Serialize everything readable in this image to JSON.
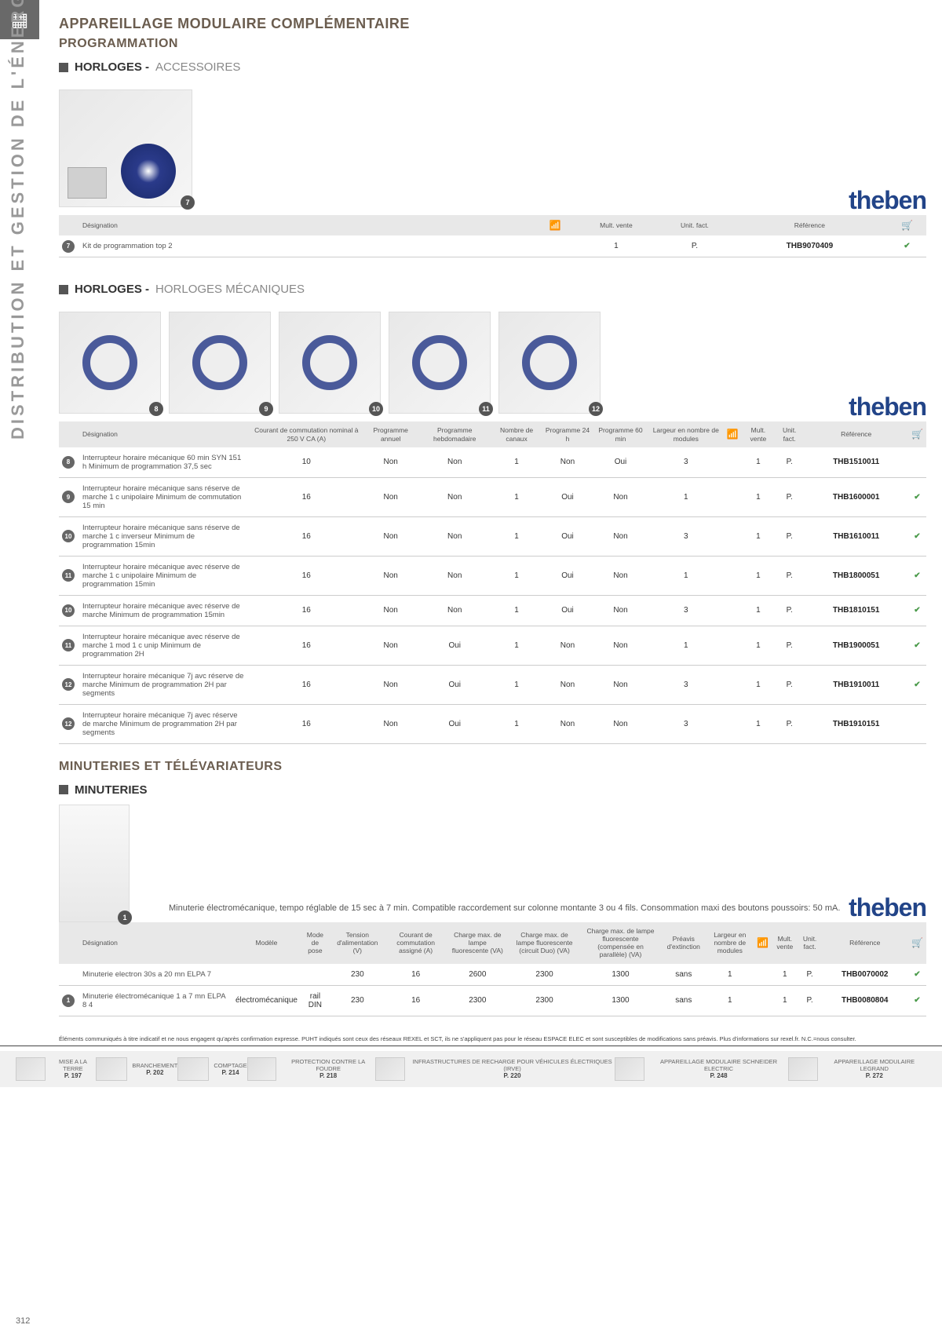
{
  "page_number": "312",
  "vertical_label": "DISTRIBUTION ET GESTION DE L'ÉNERGIE",
  "title_main": "APPAREILLAGE MODULAIRE COMPLÉMENTAIRE",
  "title_sub": "PROGRAMMATION",
  "brand": "theben",
  "section1": {
    "category": "HORLOGES -",
    "subcategory": "ACCESSOIRES",
    "headers": {
      "designation": "Désignation",
      "mult_vente": "Mult. vente",
      "unit_fact": "Unit. fact.",
      "reference": "Référence"
    },
    "rows": [
      {
        "badge": "7",
        "designation": "Kit de programmation top 2",
        "mult": "1",
        "unit": "P.",
        "ref": "THB9070409",
        "check": true
      }
    ]
  },
  "section2": {
    "category": "HORLOGES -",
    "subcategory": "HORLOGES MÉCANIQUES",
    "img_badges": [
      "8",
      "9",
      "10",
      "11",
      "12"
    ],
    "headers": {
      "designation": "Désignation",
      "courant": "Courant de commutation nominal à 250 V CA (A)",
      "prog_annuel": "Programme annuel",
      "prog_hebdo": "Programme hebdomadaire",
      "nb_canaux": "Nombre de canaux",
      "prog_24h": "Programme 24 h",
      "prog_60min": "Programme 60 min",
      "largeur": "Largeur en nombre de modules",
      "mult_vente": "Mult. vente",
      "unit_fact": "Unit. fact.",
      "reference": "Référence"
    },
    "rows": [
      {
        "badge": "8",
        "designation": "Interrupteur horaire mécanique 60 min SYN 151 h  Minimum de programmation 37,5 sec",
        "courant": "10",
        "annuel": "Non",
        "hebdo": "Non",
        "canaux": "1",
        "p24h": "Non",
        "p60": "Oui",
        "largeur": "3",
        "mult": "1",
        "unit": "P.",
        "ref": "THB1510011",
        "check": false
      },
      {
        "badge": "9",
        "designation": "Interrupteur horaire mécanique sans réserve de marche 1 c unipolaire Minimum de commutation 15 min",
        "courant": "16",
        "annuel": "Non",
        "hebdo": "Non",
        "canaux": "1",
        "p24h": "Oui",
        "p60": "Non",
        "largeur": "1",
        "mult": "1",
        "unit": "P.",
        "ref": "THB1600001",
        "check": true
      },
      {
        "badge": "10",
        "designation": "Interrupteur horaire mécanique sans réserve de marche 1 c  inverseur Minimum de programmation 15min",
        "courant": "16",
        "annuel": "Non",
        "hebdo": "Non",
        "canaux": "1",
        "p24h": "Oui",
        "p60": "Non",
        "largeur": "3",
        "mult": "1",
        "unit": "P.",
        "ref": "THB1610011",
        "check": true
      },
      {
        "badge": "11",
        "designation": "Interrupteur horaire mécanique  avec réserve de marche  1 c  unipolaire Minimum de programmation 15min",
        "courant": "16",
        "annuel": "Non",
        "hebdo": "Non",
        "canaux": "1",
        "p24h": "Oui",
        "p60": "Non",
        "largeur": "1",
        "mult": "1",
        "unit": "P.",
        "ref": "THB1800051",
        "check": true
      },
      {
        "badge": "10",
        "designation": "Interrupteur horaire mécanique avec réserve de marche Minimum de programmation 15min",
        "courant": "16",
        "annuel": "Non",
        "hebdo": "Non",
        "canaux": "1",
        "p24h": "Oui",
        "p60": "Non",
        "largeur": "3",
        "mult": "1",
        "unit": "P.",
        "ref": "THB1810151",
        "check": true
      },
      {
        "badge": "11",
        "designation": "Interrupteur horaire mécanique avec réserve de marche  1 mod 1 c unip Minimum de programmation 2H",
        "courant": "16",
        "annuel": "Non",
        "hebdo": "Oui",
        "canaux": "1",
        "p24h": "Non",
        "p60": "Non",
        "largeur": "1",
        "mult": "1",
        "unit": "P.",
        "ref": "THB1900051",
        "check": true
      },
      {
        "badge": "12",
        "designation": "Interrupteur horaire mécanique 7j avc réserve de marche Minimum de programmation 2H par segments",
        "courant": "16",
        "annuel": "Non",
        "hebdo": "Oui",
        "canaux": "1",
        "p24h": "Non",
        "p60": "Non",
        "largeur": "3",
        "mult": "1",
        "unit": "P.",
        "ref": "THB1910011",
        "check": true
      },
      {
        "badge": "12",
        "designation": "Interrupteur horaire mécanique 7j avec réserve de marche Minimum de programmation 2H par segments",
        "courant": "16",
        "annuel": "Non",
        "hebdo": "Oui",
        "canaux": "1",
        "p24h": "Non",
        "p60": "Non",
        "largeur": "3",
        "mult": "1",
        "unit": "P.",
        "ref": "THB1910151",
        "check": false
      }
    ]
  },
  "section3_title": "MINUTERIES ET TÉLÉVARIATEURS",
  "section3": {
    "category": "MINUTERIES",
    "description": "Minuterie électromécanique, tempo réglable de 15 sec à 7 min. Compatible raccordement sur colonne montante 3 ou 4 fils. Consommation maxi des boutons poussoirs: 50 mA.",
    "desc_badge": "1",
    "headers": {
      "designation": "Désignation",
      "modele": "Modèle",
      "mode_pose": "Mode de pose",
      "tension": "Tension d'alimentation (V)",
      "courant": "Courant de commutation assigné (A)",
      "charge_lampe": "Charge max. de lampe fluorescente (VA)",
      "charge_duo": "Charge max. de lampe fluorescente (circuit Duo) (VA)",
      "charge_comp": "Charge max. de lampe fluorescente (compensée en parallèle) (VA)",
      "preavis": "Préavis d'extinction",
      "largeur": "Largeur en nombre de modules",
      "mult_vente": "Mult. vente",
      "unit_fact": "Unit. fact.",
      "reference": "Référence"
    },
    "rows": [
      {
        "badge": "",
        "designation": "Minuterie electron 30s a 20 mn ELPA 7",
        "modele": "",
        "pose": "",
        "tension": "230",
        "courant": "16",
        "c1": "2600",
        "c2": "2300",
        "c3": "1300",
        "preavis": "sans",
        "largeur": "1",
        "mult": "1",
        "unit": "P.",
        "ref": "THB0070002",
        "check": true
      },
      {
        "badge": "1",
        "designation": "Minuterie électromécanique 1 a 7 mn ELPA 8 4",
        "modele": "électromécanique",
        "pose": "rail DIN",
        "tension": "230",
        "courant": "16",
        "c1": "2300",
        "c2": "2300",
        "c3": "1300",
        "preavis": "sans",
        "largeur": "1",
        "mult": "1",
        "unit": "P.",
        "ref": "THB0080804",
        "check": true
      }
    ]
  },
  "disclaimer": "Éléments communiqués à titre indicatif et ne nous engagent qu'après confirmation expresse. PUHT indiqués sont ceux des réseaux REXEL et SCT, ils ne s'appliquent pas pour le réseau ESPACE ELEC et sont susceptibles de modifications sans préavis. Plus d'informations sur rexel.fr. N.C.=nous consulter.",
  "footer": [
    {
      "title": "MISE A LA TERRE",
      "page": "P. 197"
    },
    {
      "title": "BRANCHEMENT",
      "page": "P. 202"
    },
    {
      "title": "COMPTAGE",
      "page": "P. 214"
    },
    {
      "title": "PROTECTION CONTRE LA FOUDRE",
      "page": "P. 218"
    },
    {
      "title": "INFRASTRUCTURES DE RECHARGE POUR VÉHICULES ÉLECTRIQUES (IRVE)",
      "page": "P. 220"
    },
    {
      "title": "APPAREILLAGE MODULAIRE SCHNEIDER ELECTRIC",
      "page": "P. 248"
    },
    {
      "title": "APPAREILLAGE MODULAIRE LEGRAND",
      "page": "P. 272"
    }
  ]
}
